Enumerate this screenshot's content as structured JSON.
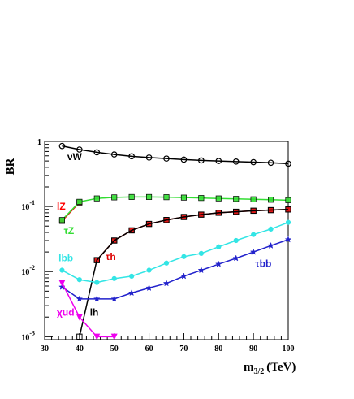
{
  "chart_data": {
    "type": "line",
    "xlabel": "m",
    "xlabel_sub": "3/2",
    "xlabel_unit": "(TeV)",
    "ylabel": "BR",
    "xlim": [
      30,
      100
    ],
    "ylim": [
      0.0009,
      1.0
    ],
    "yscale": "log",
    "grid": false,
    "x_ticks": [
      "30",
      "40",
      "50",
      "60",
      "70",
      "80",
      "90",
      "100"
    ],
    "y_ticks": [
      {
        "base": "1",
        "exp": ""
      },
      {
        "base": "10",
        "exp": "-1"
      },
      {
        "base": "10",
        "exp": "-2"
      },
      {
        "base": "10",
        "exp": "-3"
      }
    ],
    "series": [
      {
        "name": "νW",
        "color": "#000000",
        "marker": "circle",
        "x": [
          35,
          40,
          45,
          50,
          55,
          60,
          65,
          70,
          75,
          80,
          85,
          90,
          95,
          100
        ],
        "y": [
          0.85,
          0.75,
          0.68,
          0.63,
          0.59,
          0.565,
          0.545,
          0.525,
          0.51,
          0.5,
          0.49,
          0.48,
          0.47,
          0.455
        ]
      },
      {
        "name": "lZ",
        "color": "#ff0000",
        "marker": "square",
        "x": [
          35,
          40
        ],
        "y": [
          0.06,
          0.115
        ]
      },
      {
        "name": "τZ",
        "color": "#33dd33",
        "marker": "square",
        "x": [
          35,
          40,
          45,
          50,
          55,
          60,
          65,
          70,
          75,
          80,
          85,
          90,
          95,
          100
        ],
        "y": [
          0.062,
          0.118,
          0.133,
          0.138,
          0.14,
          0.14,
          0.139,
          0.137,
          0.135,
          0.133,
          0.131,
          0.129,
          0.127,
          0.125
        ]
      },
      {
        "name": "τh",
        "color": "#dd0000",
        "marker": "square",
        "x": [
          45,
          50,
          55,
          60,
          65,
          70,
          75,
          80,
          85,
          90,
          95,
          100
        ],
        "y": [
          0.015,
          0.03,
          0.043,
          0.054,
          0.062,
          0.069,
          0.075,
          0.08,
          0.083,
          0.086,
          0.088,
          0.09
        ]
      },
      {
        "name": "lh",
        "color": "#000000",
        "marker": "square-open",
        "x": [
          40,
          45,
          50,
          55,
          60,
          65,
          70,
          75,
          80,
          85,
          90,
          95,
          100
        ],
        "y": [
          0.001,
          0.015,
          0.03,
          0.043,
          0.054,
          0.062,
          0.069,
          0.075,
          0.08,
          0.083,
          0.086,
          0.088,
          0.09
        ]
      },
      {
        "name": "lbb",
        "color": "#33e5e5",
        "marker": "circle-filled",
        "x": [
          35,
          40,
          45,
          50,
          55,
          60,
          65,
          70,
          75,
          80,
          85,
          90,
          95,
          100
        ],
        "y": [
          0.0105,
          0.0075,
          0.0068,
          0.0078,
          0.0085,
          0.0105,
          0.0135,
          0.017,
          0.019,
          0.024,
          0.03,
          0.037,
          0.045,
          0.057
        ]
      },
      {
        "name": "τbb",
        "color": "#2222cc",
        "marker": "star",
        "x": [
          35,
          40,
          45,
          50,
          55,
          60,
          65,
          70,
          75,
          80,
          85,
          90,
          95,
          100
        ],
        "y": [
          0.0058,
          0.0038,
          0.0038,
          0.0038,
          0.0047,
          0.0056,
          0.0066,
          0.0085,
          0.0105,
          0.013,
          0.016,
          0.02,
          0.025,
          0.031
        ]
      },
      {
        "name": "χud",
        "color": "#ee00ee",
        "marker": "triangle-down",
        "x": [
          35,
          40,
          45,
          50
        ],
        "y": [
          0.0067,
          0.002,
          0.001,
          0.001
        ]
      }
    ],
    "labels": [
      {
        "text": "νW",
        "x": 36.5,
        "y": 0.52,
        "color": "#000000"
      },
      {
        "text": "lZ",
        "x": 33.5,
        "y": 0.089,
        "color": "#ff0000"
      },
      {
        "text": "τZ",
        "x": 35.5,
        "y": 0.038,
        "color": "#33dd33"
      },
      {
        "text": "τh",
        "x": 47.5,
        "y": 0.015,
        "color": "#dd0000"
      },
      {
        "text": "lbb",
        "x": 34.0,
        "y": 0.0145,
        "color": "#33e5e5"
      },
      {
        "text": "τbb",
        "x": 90.5,
        "y": 0.0118,
        "color": "#2222cc"
      },
      {
        "text": "χud",
        "x": 33.5,
        "y": 0.0021,
        "color": "#ee00ee"
      },
      {
        "text": "lh",
        "x": 43.0,
        "y": 0.0021,
        "color": "#000000"
      }
    ]
  }
}
